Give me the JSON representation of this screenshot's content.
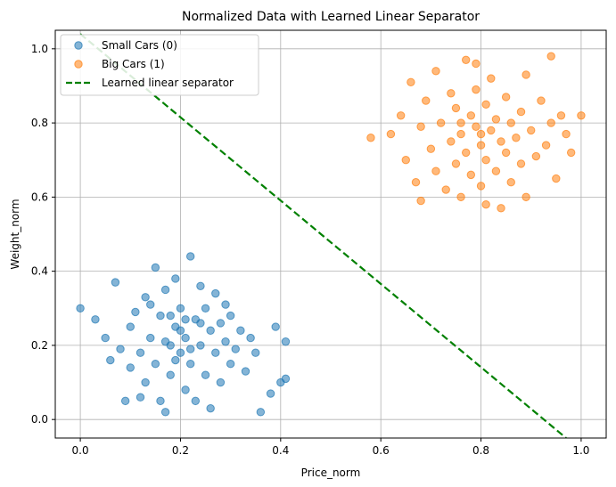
{
  "chart_data": {
    "type": "scatter",
    "title": "Normalized Data with Learned Linear Separator",
    "xlabel": "Price_norm",
    "ylabel": "Weight_norm",
    "xlim": [
      -0.05,
      1.05
    ],
    "ylim": [
      -0.05,
      1.05
    ],
    "xticks": [
      0.0,
      0.2,
      0.4,
      0.6,
      0.8,
      1.0
    ],
    "yticks": [
      0.0,
      0.2,
      0.4,
      0.6,
      0.8,
      1.0
    ],
    "xtick_labels": [
      "0.0",
      "0.2",
      "0.4",
      "0.6",
      "0.8",
      "1.0"
    ],
    "ytick_labels": [
      "0.0",
      "0.2",
      "0.4",
      "0.6",
      "0.8",
      "1.0"
    ],
    "grid": true,
    "legend_position": "top-left",
    "series": [
      {
        "name": "Small Cars (0)",
        "color": "#1f77b4",
        "marker": "circle",
        "points": [
          [
            0.0,
            0.3
          ],
          [
            0.03,
            0.27
          ],
          [
            0.05,
            0.22
          ],
          [
            0.07,
            0.37
          ],
          [
            0.08,
            0.19
          ],
          [
            0.09,
            0.05
          ],
          [
            0.1,
            0.25
          ],
          [
            0.11,
            0.29
          ],
          [
            0.12,
            0.18
          ],
          [
            0.13,
            0.33
          ],
          [
            0.13,
            0.1
          ],
          [
            0.14,
            0.22
          ],
          [
            0.15,
            0.41
          ],
          [
            0.15,
            0.15
          ],
          [
            0.16,
            0.28
          ],
          [
            0.16,
            0.05
          ],
          [
            0.17,
            0.35
          ],
          [
            0.17,
            0.02
          ],
          [
            0.18,
            0.2
          ],
          [
            0.18,
            0.12
          ],
          [
            0.19,
            0.38
          ],
          [
            0.19,
            0.25
          ],
          [
            0.2,
            0.18
          ],
          [
            0.2,
            0.3
          ],
          [
            0.21,
            0.08
          ],
          [
            0.21,
            0.22
          ],
          [
            0.22,
            0.44
          ],
          [
            0.22,
            0.15
          ],
          [
            0.23,
            0.27
          ],
          [
            0.23,
            0.05
          ],
          [
            0.24,
            0.36
          ],
          [
            0.24,
            0.2
          ],
          [
            0.25,
            0.12
          ],
          [
            0.25,
            0.3
          ],
          [
            0.26,
            0.03
          ],
          [
            0.26,
            0.24
          ],
          [
            0.27,
            0.18
          ],
          [
            0.27,
            0.34
          ],
          [
            0.28,
            0.1
          ],
          [
            0.28,
            0.26
          ],
          [
            0.29,
            0.21
          ],
          [
            0.29,
            0.31
          ],
          [
            0.3,
            0.15
          ],
          [
            0.3,
            0.28
          ],
          [
            0.31,
            0.19
          ],
          [
            0.32,
            0.24
          ],
          [
            0.33,
            0.13
          ],
          [
            0.34,
            0.22
          ],
          [
            0.35,
            0.18
          ],
          [
            0.36,
            0.02
          ],
          [
            0.38,
            0.07
          ],
          [
            0.39,
            0.25
          ],
          [
            0.4,
            0.1
          ],
          [
            0.41,
            0.21
          ],
          [
            0.41,
            0.11
          ],
          [
            0.12,
            0.06
          ],
          [
            0.1,
            0.14
          ],
          [
            0.06,
            0.16
          ],
          [
            0.14,
            0.31
          ],
          [
            0.18,
            0.28
          ],
          [
            0.2,
            0.24
          ],
          [
            0.22,
            0.19
          ],
          [
            0.19,
            0.16
          ],
          [
            0.24,
            0.26
          ],
          [
            0.17,
            0.21
          ],
          [
            0.21,
            0.27
          ]
        ]
      },
      {
        "name": "Big Cars (1)",
        "color": "#ff7f0e",
        "marker": "circle",
        "points": [
          [
            0.58,
            0.76
          ],
          [
            0.62,
            0.77
          ],
          [
            0.64,
            0.82
          ],
          [
            0.65,
            0.7
          ],
          [
            0.66,
            0.91
          ],
          [
            0.67,
            0.64
          ],
          [
            0.68,
            0.79
          ],
          [
            0.68,
            0.59
          ],
          [
            0.69,
            0.86
          ],
          [
            0.7,
            0.73
          ],
          [
            0.71,
            0.94
          ],
          [
            0.71,
            0.67
          ],
          [
            0.72,
            0.8
          ],
          [
            0.73,
            0.62
          ],
          [
            0.74,
            0.88
          ],
          [
            0.74,
            0.75
          ],
          [
            0.75,
            0.69
          ],
          [
            0.75,
            0.84
          ],
          [
            0.76,
            0.77
          ],
          [
            0.76,
            0.6
          ],
          [
            0.77,
            0.97
          ],
          [
            0.77,
            0.72
          ],
          [
            0.78,
            0.82
          ],
          [
            0.78,
            0.66
          ],
          [
            0.79,
            0.79
          ],
          [
            0.79,
            0.89
          ],
          [
            0.8,
            0.74
          ],
          [
            0.8,
            0.63
          ],
          [
            0.81,
            0.85
          ],
          [
            0.81,
            0.7
          ],
          [
            0.82,
            0.78
          ],
          [
            0.82,
            0.92
          ],
          [
            0.83,
            0.67
          ],
          [
            0.83,
            0.81
          ],
          [
            0.84,
            0.57
          ],
          [
            0.84,
            0.75
          ],
          [
            0.85,
            0.87
          ],
          [
            0.85,
            0.72
          ],
          [
            0.86,
            0.8
          ],
          [
            0.86,
            0.64
          ],
          [
            0.87,
            0.76
          ],
          [
            0.88,
            0.83
          ],
          [
            0.88,
            0.69
          ],
          [
            0.89,
            0.93
          ],
          [
            0.89,
            0.6
          ],
          [
            0.9,
            0.78
          ],
          [
            0.91,
            0.71
          ],
          [
            0.92,
            0.86
          ],
          [
            0.93,
            0.74
          ],
          [
            0.94,
            0.8
          ],
          [
            0.95,
            0.65
          ],
          [
            0.96,
            0.82
          ],
          [
            0.97,
            0.77
          ],
          [
            0.98,
            0.72
          ],
          [
            1.0,
            0.82
          ],
          [
            0.94,
            0.98
          ],
          [
            0.79,
            0.96
          ],
          [
            0.81,
            0.58
          ],
          [
            0.76,
            0.8
          ],
          [
            0.8,
            0.77
          ]
        ]
      }
    ],
    "lines": [
      {
        "name": "Learned linear separator",
        "color": "#008000",
        "style": "dashed",
        "x": [
          0.0,
          0.97
        ],
        "y": [
          1.04,
          -0.05
        ]
      }
    ]
  }
}
